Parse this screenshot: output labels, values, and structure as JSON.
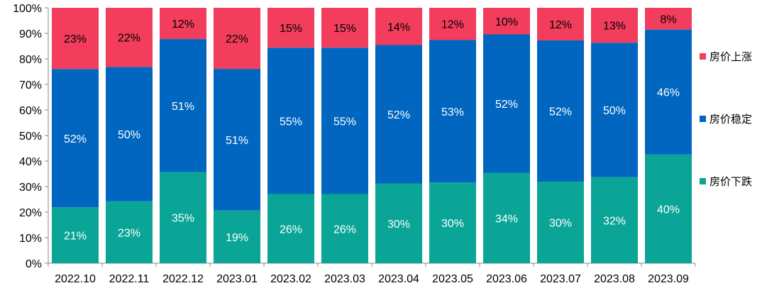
{
  "chart_data": {
    "type": "bar",
    "stacked": true,
    "percent_stacked": true,
    "categories": [
      "2022.10",
      "2022.11",
      "2022.12",
      "2023.01",
      "2023.02",
      "2023.03",
      "2023.04",
      "2023.05",
      "2023.06",
      "2023.07",
      "2023.08",
      "2023.09"
    ],
    "series": [
      {
        "name": "房价下跌",
        "color": "#0aa596",
        "values": [
          21,
          23,
          35,
          19,
          26,
          26,
          30,
          30,
          34,
          30,
          32,
          40
        ]
      },
      {
        "name": "房价稳定",
        "color": "#0066bf",
        "values": [
          52,
          50,
          51,
          51,
          55,
          55,
          52,
          53,
          52,
          52,
          50,
          46
        ]
      },
      {
        "name": "房价上涨",
        "color": "#f23d5c",
        "values": [
          23,
          22,
          12,
          22,
          15,
          15,
          14,
          12,
          10,
          12,
          13,
          8
        ]
      }
    ],
    "y_ticks": [
      "0%",
      "10%",
      "20%",
      "30%",
      "40%",
      "50%",
      "60%",
      "70%",
      "80%",
      "90%",
      "100%"
    ],
    "ylim": [
      0,
      100
    ],
    "legend_position": "right",
    "grid": false
  }
}
